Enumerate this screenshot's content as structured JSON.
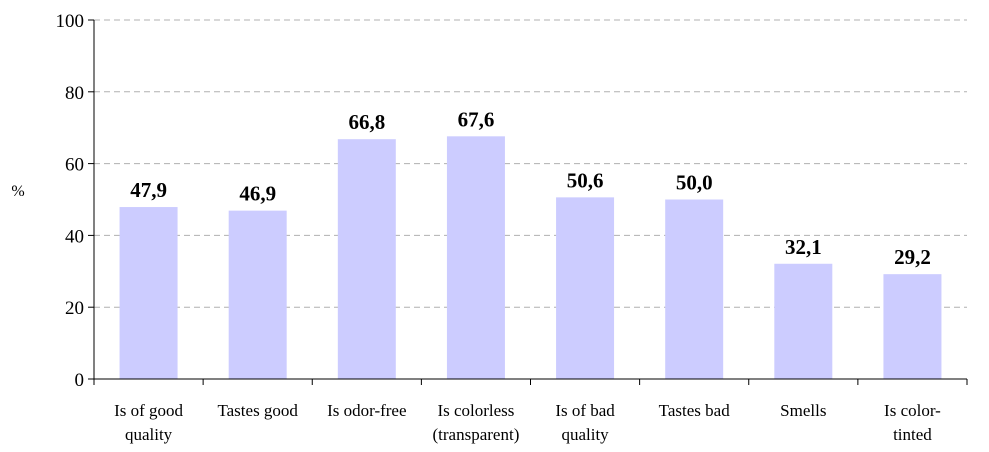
{
  "chart_data": {
    "type": "bar",
    "title": "",
    "xlabel": "",
    "ylabel": "%",
    "ylim": [
      0,
      100
    ],
    "yticks": [
      0,
      20,
      40,
      60,
      80,
      100
    ],
    "grid": true,
    "bar_color": "#ccccff",
    "categories": [
      [
        "Is of good",
        "quality"
      ],
      [
        "Tastes good"
      ],
      [
        "Is odor-free"
      ],
      [
        "Is colorless",
        "(transparent)"
      ],
      [
        "Is of bad",
        "quality"
      ],
      [
        "Tastes bad"
      ],
      [
        "Smells"
      ],
      [
        "Is color-",
        "tinted"
      ]
    ],
    "values": [
      47.9,
      46.9,
      66.8,
      67.6,
      50.6,
      50.0,
      32.1,
      29.2
    ],
    "value_labels": [
      "47,9",
      "46,9",
      "66,8",
      "67,6",
      "50,6",
      "50,0",
      "32,1",
      "29,2"
    ]
  }
}
